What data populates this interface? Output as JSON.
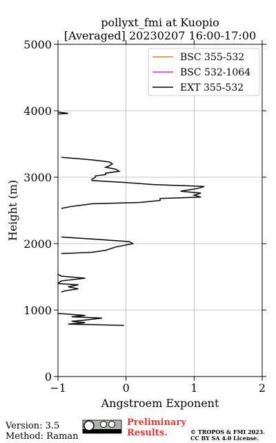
{
  "chart_data": {
    "type": "line",
    "title": "pollyxt_fmi at Kuopio",
    "subtitle": "[Averaged] 20230207 16:00-17:00",
    "x_label": "Angstroem Exponent",
    "y_label": "Height (m)",
    "xlim": [
      -1,
      2
    ],
    "xticks": [
      {
        "value": -1,
        "label": "−1"
      },
      0,
      1,
      2
    ],
    "ylim": [
      0,
      5000
    ],
    "yticks": [
      0,
      1000,
      2000,
      3000,
      4000,
      5000
    ],
    "grid": true,
    "legend": "upper right",
    "series": [
      {
        "name": "BSC 355-532",
        "color": "#ff7f0e",
        "x": [],
        "y": []
      },
      {
        "name": "BSC 532-1064",
        "color": "#ff1aff",
        "x": [],
        "y": []
      },
      {
        "name": "EXT 355-532",
        "color": "#000000",
        "x": [
          -0.03,
          -0.85,
          -0.6,
          -0.8,
          -0.6,
          -0.35,
          -0.8,
          -0.6,
          -1.0,
          null,
          -0.95,
          -0.9,
          -0.7,
          -0.85,
          -0.7,
          -1.0,
          -0.95,
          -0.6,
          -0.95,
          -1.0,
          null,
          -0.95,
          -0.5,
          -0.3,
          -0.15,
          0.1,
          0.05,
          -0.5,
          -0.95,
          null,
          -0.95,
          -0.8,
          -0.5,
          0.2,
          0.5,
          0.5,
          1.1,
          1.0,
          1.1,
          0.8,
          1.05,
          1.15,
          0.4,
          0.0,
          -0.5,
          -0.5,
          -0.45,
          -0.45,
          -0.3,
          -0.3,
          -0.1,
          -0.15,
          -0.3,
          -0.25,
          -0.2,
          -0.25,
          -0.5,
          -0.95,
          null,
          -1.0,
          -0.85,
          -1.0
        ],
        "y": [
          770,
          790,
          810,
          830,
          850,
          880,
          900,
          920,
          950,
          null,
          1270,
          1290,
          1320,
          1350,
          1380,
          1400,
          1440,
          1480,
          1510,
          1540,
          null,
          1850,
          1870,
          1900,
          1950,
          2000,
          2030,
          2070,
          2100,
          null,
          2530,
          2560,
          2600,
          2620,
          2650,
          2680,
          2700,
          2730,
          2760,
          2790,
          2830,
          2860,
          2890,
          2920,
          2950,
          2970,
          3000,
          3020,
          3040,
          3060,
          3090,
          3120,
          3150,
          3170,
          3200,
          3230,
          3260,
          3300,
          null,
          3950,
          3960,
          3980
        ]
      }
    ],
    "footer": {
      "version": "Version: 3.5",
      "method": "Method: Raman",
      "notice": "Preliminary Results.",
      "copyright": "© TROPOS & FMI 2023.",
      "license": "CC BY SA 4.0 License."
    }
  }
}
